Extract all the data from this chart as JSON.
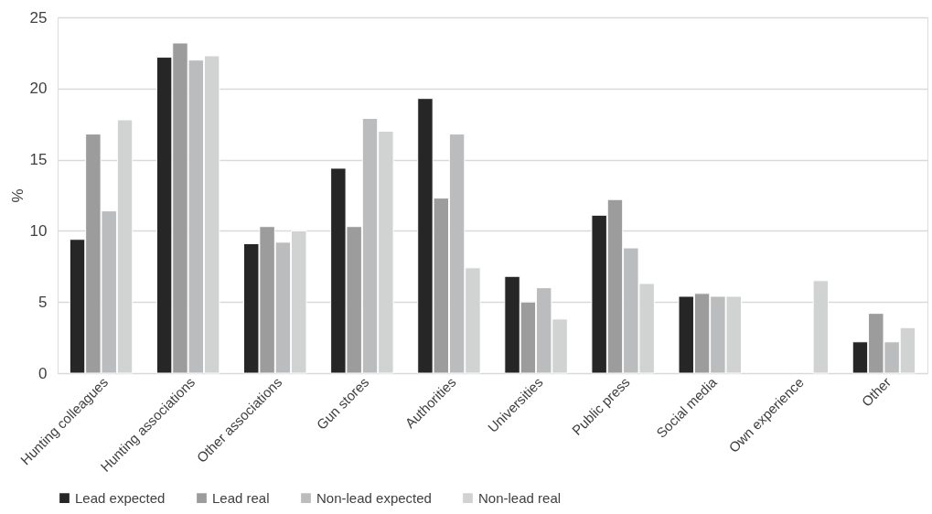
{
  "chart_data": {
    "type": "bar",
    "ylabel": "%",
    "categories": [
      "Hunting colleagues",
      "Hunting associations",
      "Other associations",
      "Gun stores",
      "Authorities",
      "Universities",
      "Public press",
      "Social media",
      "Own experience",
      "Other"
    ],
    "series": [
      {
        "name": "Lead expected",
        "color": "#262626",
        "values": [
          9.4,
          22.2,
          9.1,
          14.4,
          19.3,
          6.8,
          11.1,
          5.4,
          null,
          2.2
        ]
      },
      {
        "name": "Lead real",
        "color": "#9c9c9c",
        "values": [
          16.8,
          23.2,
          10.3,
          10.3,
          12.3,
          5.0,
          12.2,
          5.6,
          null,
          4.2
        ]
      },
      {
        "name": "Non-lead expected",
        "color": "#bbbcbd",
        "values": [
          11.4,
          22.0,
          9.2,
          17.9,
          16.8,
          6.0,
          8.8,
          5.4,
          null,
          2.2
        ]
      },
      {
        "name": "Non-lead real",
        "color": "#d1d2d2",
        "values": [
          17.8,
          22.3,
          10.0,
          17.0,
          7.4,
          3.8,
          6.3,
          5.4,
          6.5,
          3.2
        ]
      }
    ],
    "ylim": [
      0,
      25
    ],
    "yticks": [
      0,
      5,
      10,
      15,
      20,
      25
    ],
    "grid": "y",
    "legend": "bottom"
  }
}
